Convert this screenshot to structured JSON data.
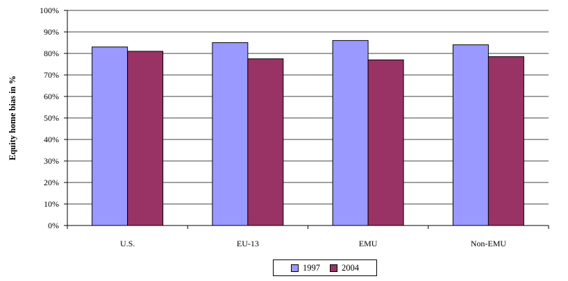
{
  "chart_data": {
    "type": "bar",
    "categories": [
      "U.S.",
      "EU-13",
      "EMU",
      "Non-EMU"
    ],
    "series": [
      {
        "name": "1997",
        "values": [
          83,
          85,
          86,
          84
        ],
        "color": "#9999ff"
      },
      {
        "name": "2004",
        "values": [
          81,
          77.5,
          77,
          78.5
        ],
        "color": "#993366"
      }
    ],
    "ylabel": "Equity home bias in %",
    "ylim": [
      0,
      100
    ],
    "yticks": [
      "0%",
      "10%",
      "20%",
      "30%",
      "40%",
      "50%",
      "60%",
      "70%",
      "80%",
      "90%",
      "100%"
    ],
    "grid": true,
    "legend": "bottom"
  }
}
